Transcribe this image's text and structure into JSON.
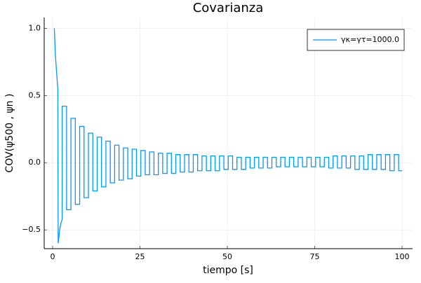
{
  "chart_data": {
    "type": "line",
    "title": "Covarianza",
    "x_label": "tiempo [s]",
    "y_label": "COV(ψ500 , ψn )",
    "x": [
      0.5,
      0.8,
      1.2,
      1.5,
      1.6,
      1.7,
      2.0,
      2.4,
      2.75,
      2.75,
      4,
      4,
      5.25,
      5.25,
      6.5,
      6.5,
      7.75,
      7.75,
      9,
      9,
      10.25,
      10.25,
      11.5,
      11.5,
      12.75,
      12.75,
      14,
      14,
      15.25,
      15.25,
      16.5,
      16.5,
      17.75,
      17.75,
      19,
      19,
      20.25,
      20.25,
      21.5,
      21.5,
      22.75,
      22.75,
      24,
      24,
      25.25,
      25.25,
      26.5,
      26.5,
      27.75,
      27.75,
      29,
      29,
      30.25,
      30.25,
      31.5,
      31.5,
      32.75,
      32.75,
      34,
      34,
      35.25,
      35.25,
      36.5,
      36.5,
      37.75,
      37.75,
      39,
      39,
      40.25,
      40.25,
      41.5,
      41.5,
      42.75,
      42.75,
      44,
      44,
      45.25,
      45.25,
      46.5,
      46.5,
      47.75,
      47.75,
      49,
      49,
      50.25,
      50.25,
      51.5,
      51.5,
      52.75,
      52.75,
      54,
      54,
      55.25,
      55.25,
      56.5,
      56.5,
      57.75,
      57.75,
      59,
      59,
      60.25,
      60.25,
      61.5,
      61.5,
      62.75,
      62.75,
      64,
      64,
      65.25,
      65.25,
      66.5,
      66.5,
      67.75,
      67.75,
      69,
      69,
      70.25,
      70.25,
      71.5,
      71.5,
      72.75,
      72.75,
      74,
      74,
      75.25,
      75.25,
      76.5,
      76.5,
      77.75,
      77.75,
      79,
      79,
      80.25,
      80.25,
      81.5,
      81.5,
      82.75,
      82.75,
      84,
      84,
      85.25,
      85.25,
      86.5,
      86.5,
      87.75,
      87.75,
      89,
      89,
      90.25,
      90.25,
      91.5,
      91.5,
      92.75,
      92.75,
      94,
      94,
      95.25,
      95.25,
      96.5,
      96.5,
      97.75,
      97.75,
      99,
      99,
      100
    ],
    "series": [
      {
        "name": "γκ=γτ=1000.0",
        "color": "#009af9",
        "values": [
          1.0,
          0.8,
          0.65,
          0.55,
          -0.6,
          -0.58,
          -0.5,
          -0.45,
          -0.42,
          0.42,
          0.42,
          -0.35,
          -0.35,
          0.33,
          0.33,
          -0.31,
          -0.31,
          0.27,
          0.27,
          -0.26,
          -0.26,
          0.22,
          0.22,
          -0.21,
          -0.21,
          0.19,
          0.19,
          -0.18,
          -0.18,
          0.16,
          0.16,
          -0.15,
          -0.15,
          0.13,
          0.13,
          -0.13,
          -0.13,
          0.11,
          0.11,
          -0.12,
          -0.12,
          0.1,
          0.1,
          -0.1,
          -0.1,
          0.09,
          0.09,
          -0.09,
          -0.09,
          0.08,
          0.08,
          -0.09,
          -0.09,
          0.07,
          0.07,
          -0.08,
          -0.08,
          0.07,
          0.07,
          -0.08,
          -0.08,
          0.06,
          0.06,
          -0.07,
          -0.07,
          0.06,
          0.06,
          -0.07,
          -0.07,
          0.06,
          0.06,
          -0.06,
          -0.06,
          0.05,
          0.05,
          -0.06,
          -0.06,
          0.05,
          0.05,
          -0.06,
          -0.06,
          0.05,
          0.05,
          -0.05,
          -0.05,
          0.05,
          0.05,
          -0.05,
          -0.05,
          0.04,
          0.04,
          -0.05,
          -0.05,
          0.04,
          0.04,
          -0.04,
          -0.04,
          0.04,
          0.04,
          -0.04,
          -0.04,
          0.04,
          0.04,
          -0.04,
          -0.04,
          0.04,
          0.04,
          -0.03,
          -0.03,
          0.04,
          0.04,
          -0.03,
          -0.03,
          0.04,
          0.04,
          -0.03,
          -0.03,
          0.04,
          0.04,
          -0.03,
          -0.03,
          0.04,
          0.04,
          -0.03,
          -0.03,
          0.04,
          0.04,
          -0.03,
          -0.03,
          0.04,
          0.04,
          -0.04,
          -0.04,
          0.05,
          0.05,
          -0.04,
          -0.04,
          0.05,
          0.05,
          -0.04,
          -0.04,
          0.05,
          0.05,
          -0.05,
          -0.05,
          0.05,
          0.05,
          -0.05,
          -0.05,
          0.06,
          0.06,
          -0.05,
          -0.05,
          0.06,
          0.06,
          -0.05,
          -0.05,
          0.06,
          0.06,
          -0.06,
          -0.06,
          0.06,
          0.06,
          -0.06,
          -0.06
        ]
      }
    ],
    "xlim": [
      -2.4,
      103
    ],
    "xticks": [
      0,
      25,
      50,
      75,
      100
    ],
    "ylim": [
      -0.64,
      1.08
    ],
    "yticks": [
      {
        "value": -0.5,
        "label": "−0.5"
      },
      {
        "value": 0,
        "label": "0.0"
      },
      0.5,
      {
        "value": 1,
        "label": "1.0"
      }
    ],
    "grid": true,
    "legend": "top-right"
  }
}
